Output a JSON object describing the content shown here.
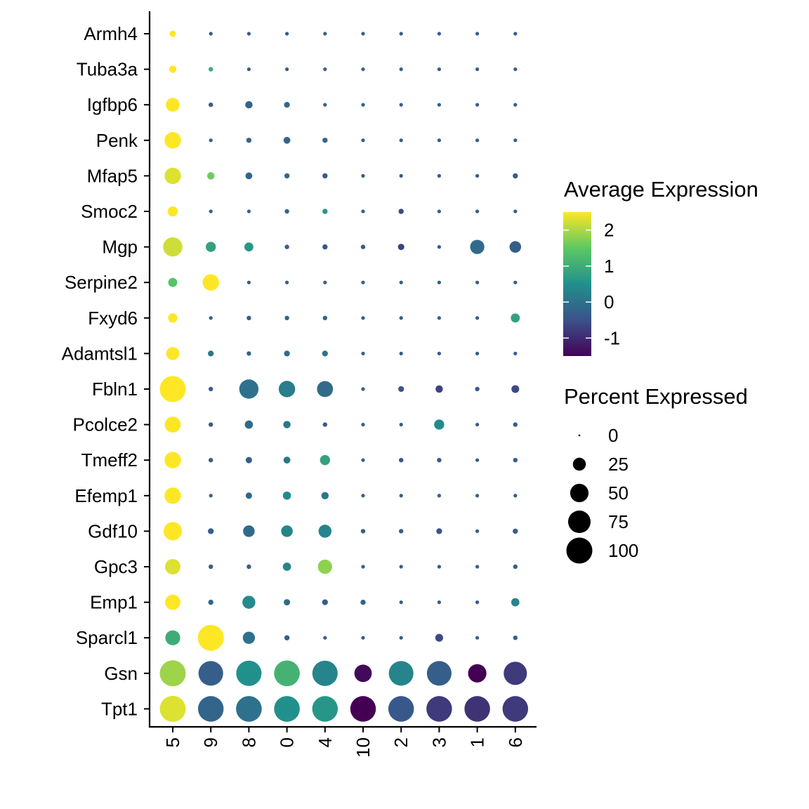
{
  "chart_data": {
    "type": "dotplot",
    "title": "",
    "xlabel": "",
    "ylabel": "",
    "clusters": [
      "5",
      "9",
      "8",
      "0",
      "4",
      "10",
      "2",
      "3",
      "1",
      "6"
    ],
    "genes": [
      "Armh4",
      "Tuba3a",
      "Igfbp6",
      "Penk",
      "Mfap5",
      "Smoc2",
      "Mgp",
      "Serpine2",
      "Fxyd6",
      "Adamtsl1",
      "Fbln1",
      "Pcolce2",
      "Tmeff2",
      "Efemp1",
      "Gdf10",
      "Gpc3",
      "Emp1",
      "Sparcl1",
      "Gsn",
      "Tpt1"
    ],
    "avg_expression": [
      [
        2.5,
        -0.4,
        -0.4,
        -0.3,
        -0.3,
        -0.3,
        -0.3,
        -0.3,
        -0.3,
        -0.3
      ],
      [
        2.5,
        1.0,
        -0.3,
        -0.3,
        -0.3,
        -0.3,
        -0.3,
        -0.3,
        -0.3,
        -0.3
      ],
      [
        2.5,
        -0.3,
        -0.2,
        -0.2,
        -0.3,
        -0.3,
        -0.3,
        -0.3,
        -0.3,
        -0.3
      ],
      [
        2.5,
        -0.3,
        -0.2,
        -0.2,
        -0.2,
        -0.3,
        -0.3,
        -0.3,
        -0.3,
        -0.3
      ],
      [
        2.3,
        1.6,
        -0.2,
        -0.2,
        -0.3,
        -0.3,
        -0.3,
        -0.3,
        -0.3,
        -0.3
      ],
      [
        2.5,
        -0.3,
        -0.3,
        -0.2,
        0.6,
        -0.3,
        -0.6,
        -0.3,
        -0.3,
        -0.3
      ],
      [
        2.2,
        0.8,
        0.6,
        -0.3,
        -0.4,
        -0.4,
        -0.7,
        -0.3,
        -0.1,
        -0.3
      ],
      [
        1.4,
        2.5,
        -0.3,
        -0.3,
        -0.3,
        -0.3,
        -0.3,
        -0.3,
        -0.3,
        -0.3
      ],
      [
        2.5,
        -0.3,
        -0.3,
        -0.2,
        -0.2,
        -0.3,
        -0.3,
        -0.3,
        -0.3,
        0.8
      ],
      [
        2.5,
        0.1,
        -0.2,
        -0.1,
        0.0,
        -0.3,
        -0.3,
        -0.3,
        -0.3,
        -0.3
      ],
      [
        2.5,
        -0.3,
        0.0,
        0.2,
        -0.1,
        -0.3,
        -0.5,
        -0.7,
        -0.3,
        -0.6
      ],
      [
        2.5,
        -0.3,
        -0.1,
        0.1,
        -0.3,
        -0.3,
        -0.3,
        0.4,
        -0.3,
        -0.3
      ],
      [
        2.5,
        -0.3,
        -0.3,
        0.1,
        0.8,
        -0.3,
        -0.4,
        -0.3,
        -0.3,
        -0.3
      ],
      [
        2.5,
        -0.3,
        -0.2,
        0.4,
        0.1,
        -0.3,
        -0.3,
        -0.3,
        -0.3,
        -0.3
      ],
      [
        2.5,
        -0.3,
        -0.1,
        0.3,
        0.3,
        -0.3,
        -0.3,
        -0.5,
        -0.3,
        -0.3
      ],
      [
        2.3,
        -0.3,
        -0.3,
        0.3,
        1.8,
        -0.3,
        -0.3,
        -0.3,
        -0.3,
        -0.3
      ],
      [
        2.5,
        -0.2,
        0.4,
        -0.1,
        -0.3,
        -0.2,
        -0.3,
        -0.3,
        -0.3,
        0.3
      ],
      [
        1.0,
        2.5,
        0.0,
        -0.3,
        -0.3,
        -0.3,
        -0.3,
        -0.6,
        -0.3,
        -0.3
      ],
      [
        1.9,
        -0.3,
        0.5,
        1.1,
        0.3,
        -1.4,
        0.3,
        -0.3,
        -1.5,
        -0.8
      ],
      [
        2.3,
        -0.2,
        0.0,
        0.5,
        0.6,
        -1.5,
        -0.4,
        -0.8,
        -0.9,
        -0.8
      ]
    ],
    "pct_expressed": [
      [
        6,
        2,
        2,
        2,
        2,
        2,
        2,
        2,
        2,
        2
      ],
      [
        8,
        3,
        2,
        2,
        2,
        2,
        2,
        2,
        2,
        2
      ],
      [
        28,
        3,
        8,
        5,
        2,
        2,
        2,
        2,
        2,
        2
      ],
      [
        40,
        2,
        4,
        7,
        4,
        2,
        2,
        2,
        2,
        2
      ],
      [
        40,
        8,
        7,
        4,
        4,
        2,
        2,
        2,
        2,
        4
      ],
      [
        15,
        2,
        2,
        3,
        4,
        2,
        4,
        2,
        2,
        2
      ],
      [
        55,
        15,
        12,
        3,
        4,
        3,
        6,
        2,
        30,
        20
      ],
      [
        12,
        40,
        2,
        2,
        2,
        2,
        2,
        2,
        2,
        2
      ],
      [
        13,
        2,
        3,
        3,
        3,
        2,
        2,
        2,
        2,
        12
      ],
      [
        25,
        5,
        3,
        5,
        5,
        2,
        2,
        2,
        2,
        2
      ],
      [
        100,
        3,
        55,
        40,
        38,
        2,
        5,
        8,
        3,
        9
      ],
      [
        38,
        3,
        10,
        8,
        3,
        2,
        2,
        15,
        2,
        3
      ],
      [
        40,
        3,
        6,
        7,
        15,
        2,
        3,
        3,
        2,
        3
      ],
      [
        40,
        2,
        6,
        10,
        8,
        2,
        2,
        2,
        2,
        2
      ],
      [
        50,
        5,
        20,
        20,
        25,
        3,
        3,
        5,
        2,
        4
      ],
      [
        35,
        3,
        3,
        10,
        30,
        2,
        2,
        2,
        2,
        3
      ],
      [
        35,
        4,
        25,
        6,
        5,
        4,
        2,
        2,
        2,
        10
      ],
      [
        33,
        100,
        22,
        4,
        2,
        2,
        2,
        9,
        2,
        3
      ],
      [
        100,
        90,
        95,
        98,
        95,
        45,
        90,
        90,
        50,
        80
      ],
      [
        100,
        97,
        98,
        98,
        97,
        97,
        97,
        97,
        97,
        97
      ]
    ],
    "color_scale": {
      "title": "Average Expression",
      "ticks": [
        2,
        1,
        0,
        -1
      ],
      "tick_labels": [
        "2",
        "1",
        "0",
        "-1"
      ],
      "range": [
        -1.5,
        2.5
      ],
      "palette": "viridis",
      "stops": [
        "#440154",
        "#3B528B",
        "#21908C",
        "#5DC863",
        "#FDE725"
      ]
    },
    "size_scale": {
      "title": "Percent Expressed",
      "breaks": [
        0,
        25,
        50,
        75,
        100
      ],
      "labels": [
        "0",
        "25",
        "50",
        "75",
        "100"
      ]
    },
    "legend_position": "right"
  }
}
